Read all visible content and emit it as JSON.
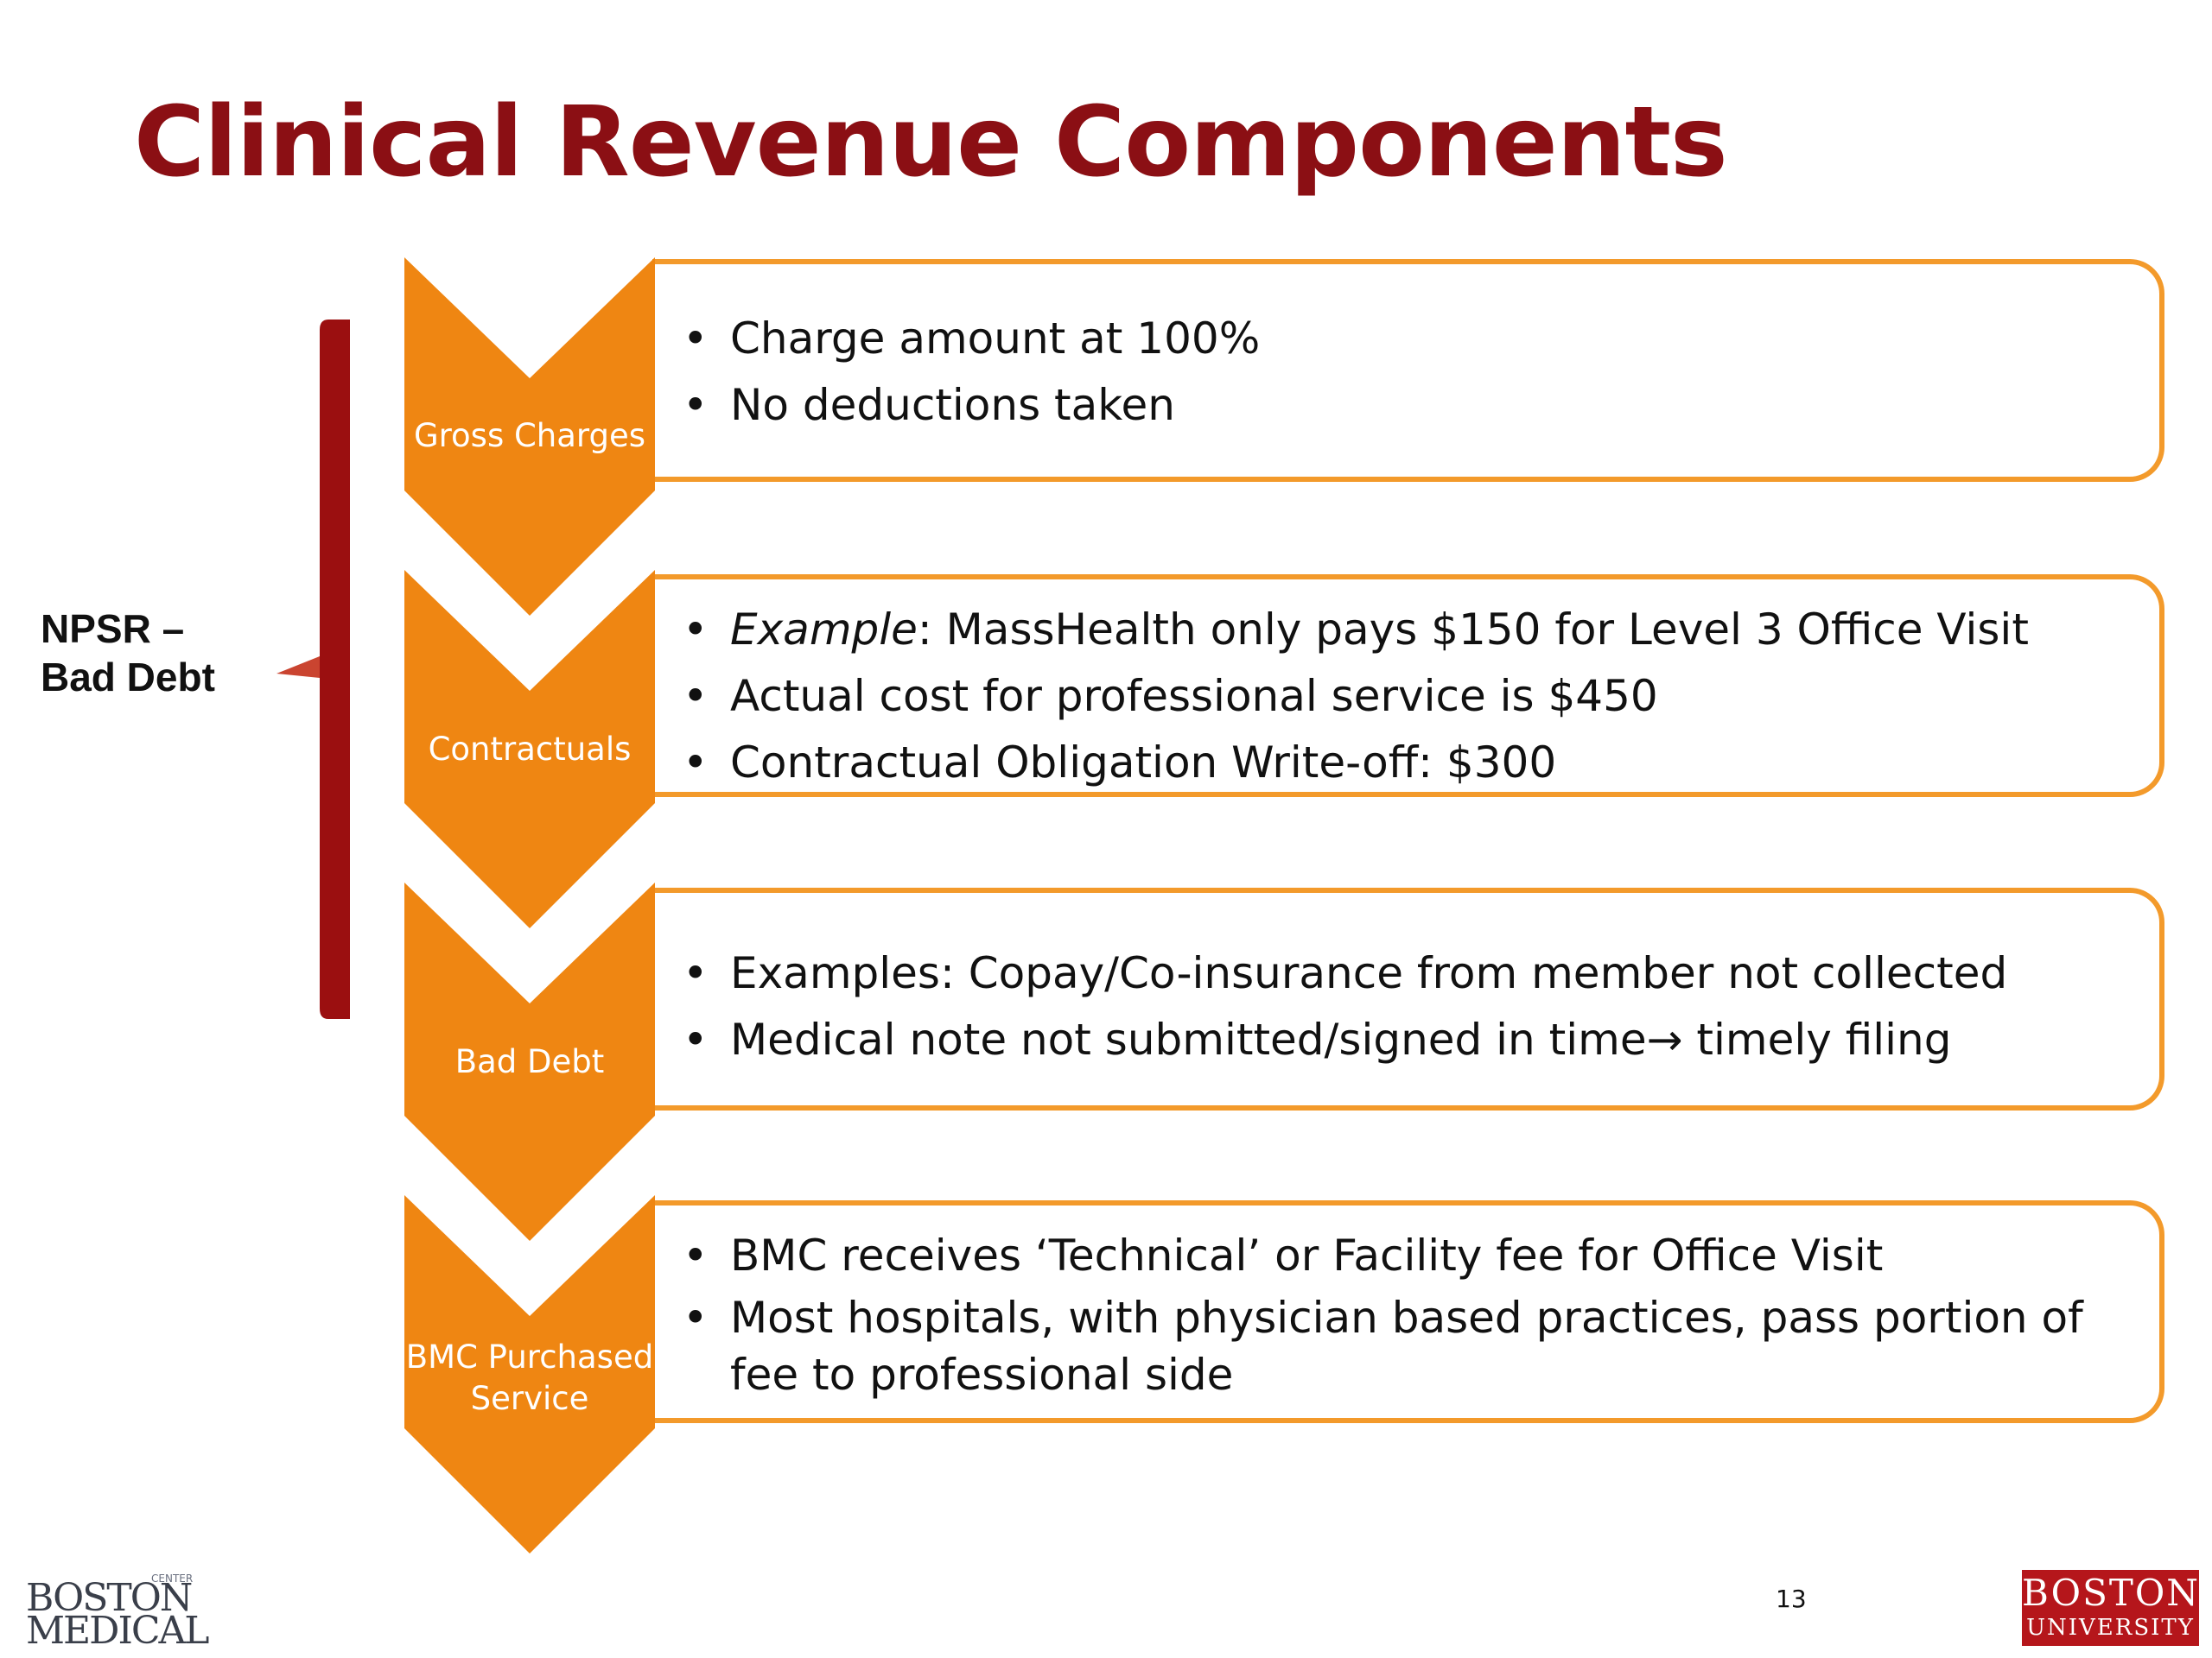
{
  "slide": {
    "title": "Clinical Revenue Components",
    "page_number": "13"
  },
  "side_label": {
    "line1": "NPSR –",
    "line2": "Bad Debt"
  },
  "stages": [
    {
      "label_lines": [
        "Gross Charges"
      ],
      "bullets": [
        {
          "parts": [
            {
              "text": "Charge amount at 100%"
            }
          ]
        },
        {
          "parts": [
            {
              "text": "No deductions taken"
            }
          ]
        }
      ]
    },
    {
      "label_lines": [
        "Contractuals"
      ],
      "bullets": [
        {
          "parts": [
            {
              "text": "Example",
              "italic": true
            },
            {
              "text": ":  MassHealth only pays $150 for Level 3 Office Visit"
            }
          ]
        },
        {
          "parts": [
            {
              "text": "Actual cost for professional service is $450"
            }
          ]
        },
        {
          "parts": [
            {
              "text": "Contractual Obligation Write-off:  $300"
            }
          ]
        }
      ]
    },
    {
      "label_lines": [
        "Bad Debt"
      ],
      "bullets": [
        {
          "parts": [
            {
              "text": "Examples:  Copay/Co-insurance from member not collected"
            }
          ]
        },
        {
          "parts": [
            {
              "text": "Medical note not submitted/signed in time"
            },
            {
              "text": "→",
              "arrow": true
            },
            {
              "text": " timely filing"
            }
          ]
        }
      ]
    },
    {
      "label_lines": [
        "BMC Purchased",
        "Service"
      ],
      "bullets": [
        {
          "parts": [
            {
              "text": "BMC receives ‘Technical’ or Facility fee for Office Visit"
            }
          ]
        },
        {
          "parts": [
            {
              "text": "Most hospitals, with physician based practices, pass portion of fee to professional side"
            }
          ]
        }
      ]
    }
  ],
  "logos": {
    "left": {
      "line1": "BOSTON",
      "line2": "MEDICAL",
      "tag": "CENTER"
    },
    "right": {
      "line1": "BOSTON",
      "line2": "UNIVERSITY"
    }
  },
  "colors": {
    "title": "#8b0f14",
    "chevron": "#ef8612",
    "box_border": "#f39a2b",
    "bracket": "#9b0f10",
    "bu_logo": "#b5161b"
  }
}
